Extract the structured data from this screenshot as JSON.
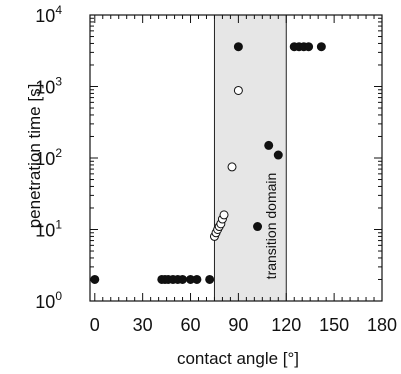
{
  "chart_data": {
    "type": "scatter",
    "xlabel": "contact angle [°]",
    "ylabel": "penetration time [s]",
    "xlim": [
      -3,
      180
    ],
    "ylim": [
      1,
      10000
    ],
    "y_scale": "log",
    "x_ticks": [
      "0",
      "30",
      "60",
      "90",
      "120",
      "150",
      "180"
    ],
    "y_ticks": [
      {
        "base": "10",
        "exp": "0",
        "value": 1
      },
      {
        "base": "10",
        "exp": "1",
        "value": 10
      },
      {
        "base": "10",
        "exp": "2",
        "value": 100
      },
      {
        "base": "10",
        "exp": "3",
        "value": 1000
      },
      {
        "base": "10",
        "exp": "4",
        "value": 10000
      }
    ],
    "region": {
      "x_start": 75,
      "x_end": 120,
      "label": "transition domain",
      "color": "#e6e6e6"
    },
    "series": [
      {
        "style": "filled",
        "color": "#111111",
        "points": [
          [
            0,
            2
          ],
          [
            42,
            2
          ],
          [
            44,
            2
          ],
          [
            46,
            2
          ],
          [
            49,
            2
          ],
          [
            52,
            2
          ],
          [
            55,
            2
          ],
          [
            60,
            2
          ],
          [
            64,
            2
          ],
          [
            72,
            2
          ],
          [
            90,
            3600
          ],
          [
            102,
            11
          ],
          [
            109,
            150
          ],
          [
            115,
            110
          ],
          [
            125,
            3600
          ],
          [
            128,
            3600
          ],
          [
            131,
            3600
          ],
          [
            134,
            3600
          ],
          [
            142,
            3600
          ]
        ]
      },
      {
        "style": "open",
        "color": "#111111",
        "points": [
          [
            75,
            8
          ],
          [
            76,
            9
          ],
          [
            77,
            10
          ],
          [
            78,
            11
          ],
          [
            79,
            12
          ],
          [
            80,
            14
          ],
          [
            81,
            16
          ],
          [
            86,
            75
          ],
          [
            90,
            880
          ]
        ]
      }
    ],
    "grid": false
  }
}
